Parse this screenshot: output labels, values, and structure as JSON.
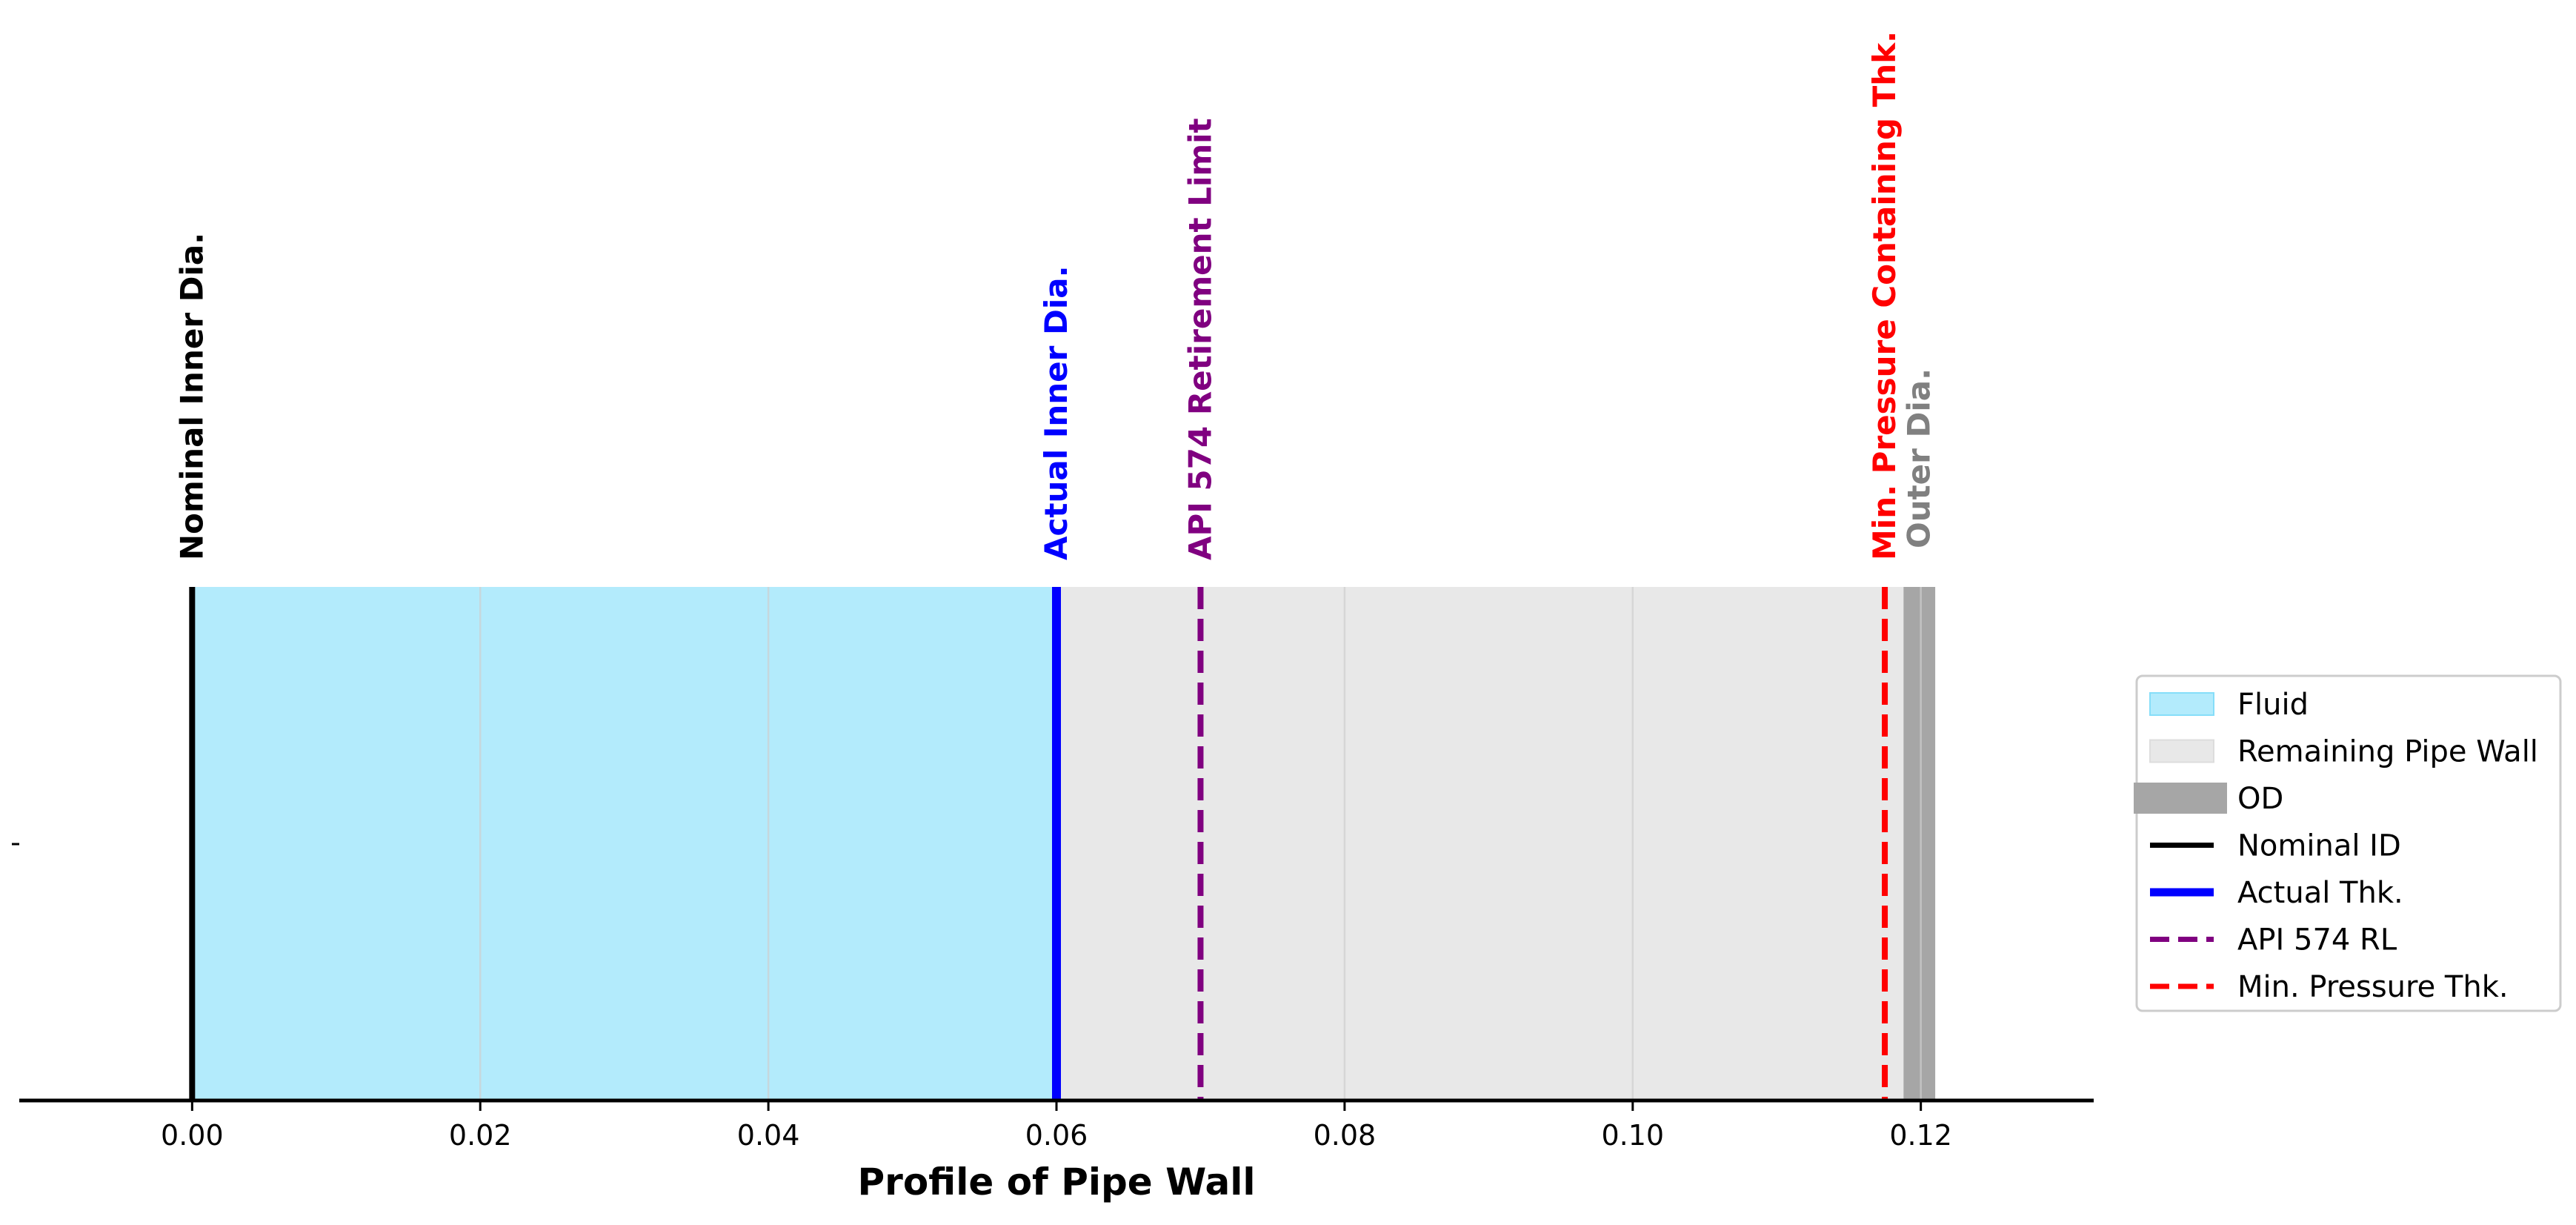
{
  "chart_data": {
    "type": "profile",
    "xlabel": "Profile of Pipe Wall",
    "xlim": [
      -0.012,
      0.132
    ],
    "x_ticks": [
      0.0,
      0.02,
      0.04,
      0.06,
      0.08,
      0.1,
      0.12
    ],
    "x_tick_labels": [
      "0.00",
      "0.02",
      "0.04",
      "0.06",
      "0.08",
      "0.10",
      "0.12"
    ],
    "grid": true,
    "legend_position": "right",
    "regions": [
      {
        "name": "Fluid",
        "x_start": 0.0,
        "x_end": 0.06,
        "color": "#b3ebfc"
      },
      {
        "name": "Remaining Pipe Wall",
        "x_start": 0.06,
        "x_end": 0.1188,
        "color": "#e8e8e8"
      },
      {
        "name": "OD",
        "x_start": 0.1188,
        "x_end": 0.121,
        "color": "#a6a6a6"
      }
    ],
    "lines": [
      {
        "name": "Nominal ID",
        "x": 0.0,
        "color": "#000000",
        "style": "solid"
      },
      {
        "name": "Actual Thk.",
        "x": 0.06,
        "color": "#0000ff",
        "style": "solid"
      },
      {
        "name": "API 574 RL",
        "x": 0.07,
        "color": "#800080",
        "style": "dashed"
      },
      {
        "name": "Min. Pressure Thk.",
        "x": 0.1175,
        "color": "#ff0000",
        "style": "dashed"
      }
    ],
    "annotations": [
      {
        "text": "Nominal Inner Dia.",
        "x": 0.0,
        "color": "#000000"
      },
      {
        "text": "Actual Inner Dia.",
        "x": 0.06,
        "color": "#0000ff"
      },
      {
        "text": "API 574 Retirement Limit",
        "x": 0.07,
        "color": "#800080"
      },
      {
        "text": "Min. Pressure Containing Thk.",
        "x": 0.1175,
        "color": "#ff0000"
      },
      {
        "text": "Outer Dia.",
        "x": 0.1199,
        "color": "#808080"
      }
    ],
    "legend": [
      {
        "label": "Fluid",
        "kind": "patch",
        "color": "#b3ebfc"
      },
      {
        "label": "Remaining Pipe Wall",
        "kind": "patch",
        "color": "#e8e8e8"
      },
      {
        "label": "OD",
        "kind": "patch",
        "color": "#a6a6a6"
      },
      {
        "label": "Nominal ID",
        "kind": "line",
        "color": "#000000",
        "style": "solid"
      },
      {
        "label": "Actual Thk.",
        "kind": "line",
        "color": "#0000ff",
        "style": "solid"
      },
      {
        "label": "API 574 RL",
        "kind": "line",
        "color": "#800080",
        "style": "dashed"
      },
      {
        "label": "Min. Pressure Thk.",
        "kind": "line",
        "color": "#ff0000",
        "style": "dashed"
      }
    ]
  }
}
